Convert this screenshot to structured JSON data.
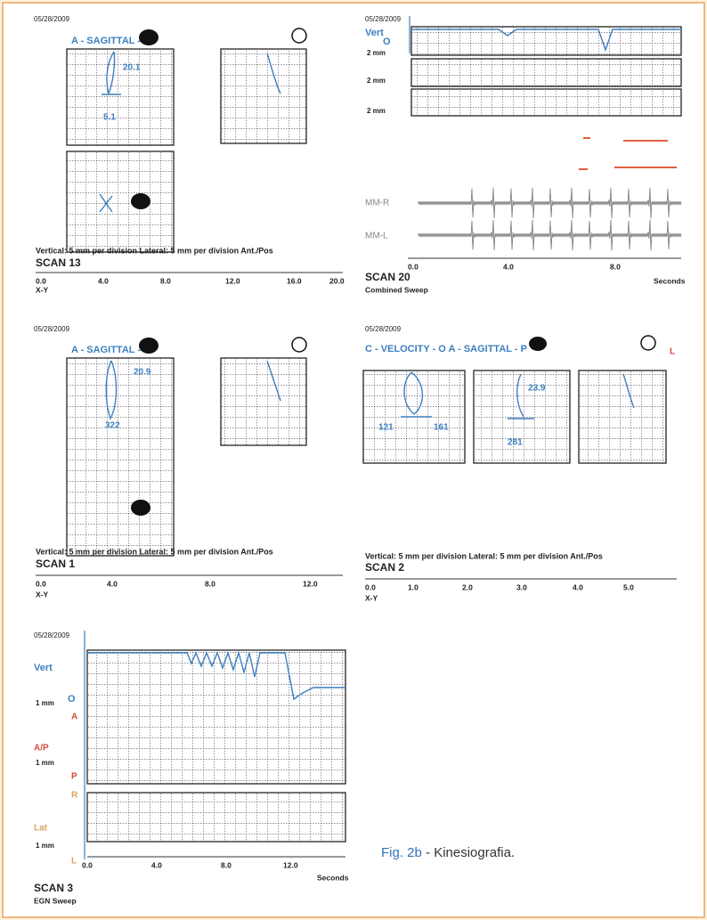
{
  "panels": [
    {
      "date": "05/28/2009",
      "title": "A - SAGITTAL - P",
      "values": [
        "20.1",
        "5.1"
      ],
      "scale_note": "Vertical: 5 mm per division Lateral: 5 mm per division Ant./Pos",
      "scan": "SCAN 13",
      "x_ticks": [
        "0.0",
        "4.0",
        "8.0",
        "12.0",
        "16.0",
        "20.0"
      ],
      "axis_label": "X-Y"
    },
    {
      "date": "05/28/2009",
      "channel": "Vert",
      "origin": "O",
      "gains": [
        "2 mm",
        "2 mm",
        "2 mm"
      ],
      "traces": [
        "MM-R",
        "MM-L"
      ],
      "x_ticks": [
        "0.0",
        "4.0",
        "8.0"
      ],
      "unit": "Seconds",
      "scan": "SCAN 20",
      "subtitle": "Combined Sweep"
    },
    {
      "date": "05/28/2009",
      "title": "A - SAGITTAL - P",
      "values": [
        "20.9",
        "322"
      ],
      "scale_note": "Vertical: 5 mm per division Lateral: 5 mm per division Ant./Pos",
      "scan": "SCAN 1",
      "x_ticks": [
        "0.0",
        "4.0",
        "8.0",
        "12.0"
      ],
      "axis_label": "X-Y"
    },
    {
      "date": "05/28/2009",
      "title": "C - VELOCITY - O A - SAGITTAL - P",
      "side": "L",
      "values": [
        "121",
        "161",
        "23.9",
        "281"
      ],
      "scale_note": "Vertical: 5 mm per division Lateral: 5 mm per division Ant./Pos",
      "scan": "SCAN 2",
      "x_ticks": [
        "0.0",
        "1.0",
        "2.0",
        "3.0",
        "4.0",
        "5.0"
      ],
      "axis_label": "X-Y"
    },
    {
      "date": "05/28/2009",
      "markers": [
        "O",
        "A",
        "P",
        "R",
        "L"
      ],
      "channels": [
        {
          "name": "Vert",
          "gain": "1 mm"
        },
        {
          "name": "A/P",
          "gain": "1 mm"
        },
        {
          "name": "Lat",
          "gain": "1 mm"
        }
      ],
      "x_ticks": [
        "0.0",
        "4.0",
        "8.0",
        "12.0"
      ],
      "unit": "Seconds",
      "scan": "SCAN 3",
      "subtitle": "EGN Sweep"
    }
  ],
  "caption": {
    "label": "Fig. 2b",
    "text": "- Kinesiografia."
  }
}
